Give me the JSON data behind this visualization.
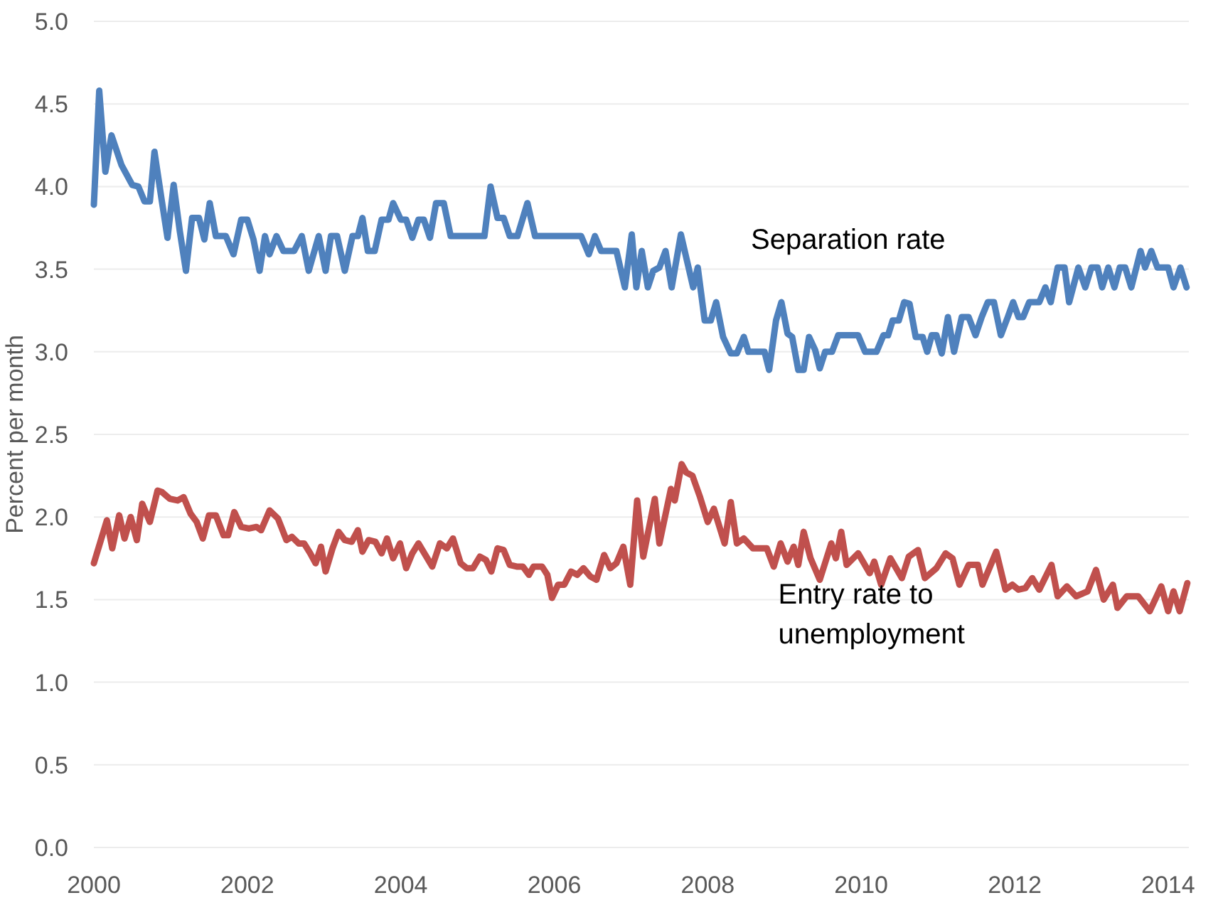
{
  "chart_data": {
    "type": "line",
    "ylabel": "Percent per month",
    "xlim": [
      2000,
      2014.27
    ],
    "xticks": [
      2000,
      2002,
      2004,
      2006,
      2008,
      2010,
      2012,
      2014
    ],
    "ylim": [
      0,
      5
    ],
    "yticks": [
      {
        "value": 0,
        "label": "0.0"
      },
      {
        "value": 0.5,
        "label": "0.5"
      },
      {
        "value": 1,
        "label": "1.0"
      },
      {
        "value": 1.5,
        "label": "1.5"
      },
      {
        "value": 2,
        "label": "2.0"
      },
      {
        "value": 2.5,
        "label": "2.5"
      },
      {
        "value": 3,
        "label": "3.0"
      },
      {
        "value": 3.5,
        "label": "3.5"
      },
      {
        "value": 4,
        "label": "4.0"
      },
      {
        "value": 4.5,
        "label": "4.5"
      },
      {
        "value": 5,
        "label": "5.0"
      }
    ],
    "grid": "y",
    "marker": "none",
    "line_style": "solid",
    "series": [
      {
        "name": "Separation rate",
        "color": "#4f81bd",
        "x": [
          2000,
          2000.07,
          2000.15,
          2000.23,
          2000.36,
          2000.5,
          2000.58,
          2000.66,
          2000.73,
          2000.79,
          2000.88,
          2000.96,
          2001.04,
          2001.12,
          2001.2,
          2001.28,
          2001.37,
          2001.44,
          2001.51,
          2001.59,
          2001.72,
          2001.82,
          2001.92,
          2002,
          2002.08,
          2002.16,
          2002.23,
          2002.29,
          2002.38,
          2002.47,
          2002.61,
          2002.71,
          2002.8,
          2002.93,
          2003.02,
          2003.09,
          2003.17,
          2003.27,
          2003.37,
          2003.44,
          2003.5,
          2003.57,
          2003.66,
          2003.75,
          2003.84,
          2003.9,
          2004,
          2004.07,
          2004.15,
          2004.23,
          2004.3,
          2004.38,
          2004.46,
          2004.56,
          2004.65,
          2005.09,
          2005.17,
          2005.26,
          2005.34,
          2005.42,
          2005.52,
          2005.65,
          2005.75,
          2006.35,
          2006.45,
          2006.53,
          2006.61,
          2006.81,
          2006.92,
          2007.01,
          2007.07,
          2007.14,
          2007.22,
          2007.29,
          2007.37,
          2007.45,
          2007.53,
          2007.65,
          2007.75,
          2007.81,
          2007.87,
          2007.96,
          2008.04,
          2008.11,
          2008.2,
          2008.3,
          2008.38,
          2008.47,
          2008.53,
          2008.74,
          2008.8,
          2008.89,
          2008.96,
          2009.04,
          2009.1,
          2009.18,
          2009.25,
          2009.32,
          2009.4,
          2009.46,
          2009.53,
          2009.62,
          2009.7,
          2009.96,
          2010.05,
          2010.2,
          2010.29,
          2010.35,
          2010.41,
          2010.49,
          2010.56,
          2010.63,
          2010.71,
          2010.8,
          2010.86,
          2010.92,
          2010.98,
          2011.05,
          2011.13,
          2011.21,
          2011.31,
          2011.4,
          2011.49,
          2011.57,
          2011.65,
          2011.73,
          2011.82,
          2011.91,
          2011.98,
          2012.05,
          2012.11,
          2012.19,
          2012.32,
          2012.4,
          2012.47,
          2012.56,
          2012.65,
          2012.71,
          2012.83,
          2012.92,
          2013,
          2013.08,
          2013.14,
          2013.22,
          2013.3,
          2013.37,
          2013.44,
          2013.52,
          2013.64,
          2013.7,
          2013.78,
          2013.86,
          2014,
          2014.07,
          2014.16,
          2014.24
        ],
        "values": [
          3.89,
          4.58,
          4.09,
          4.31,
          4.13,
          4.01,
          4.0,
          3.91,
          3.91,
          4.21,
          3.93,
          3.69,
          4.01,
          3.73,
          3.49,
          3.81,
          3.81,
          3.68,
          3.9,
          3.7,
          3.7,
          3.59,
          3.8,
          3.8,
          3.68,
          3.49,
          3.7,
          3.59,
          3.7,
          3.61,
          3.61,
          3.7,
          3.49,
          3.7,
          3.49,
          3.7,
          3.7,
          3.49,
          3.7,
          3.7,
          3.81,
          3.61,
          3.61,
          3.8,
          3.8,
          3.9,
          3.8,
          3.8,
          3.69,
          3.8,
          3.8,
          3.69,
          3.9,
          3.9,
          3.7,
          3.7,
          4.0,
          3.81,
          3.81,
          3.7,
          3.7,
          3.9,
          3.7,
          3.7,
          3.59,
          3.7,
          3.61,
          3.61,
          3.39,
          3.71,
          3.39,
          3.61,
          3.39,
          3.49,
          3.51,
          3.61,
          3.39,
          3.71,
          3.51,
          3.39,
          3.51,
          3.19,
          3.19,
          3.3,
          3.09,
          2.99,
          2.99,
          3.09,
          3.0,
          3.0,
          2.89,
          3.19,
          3.3,
          3.11,
          3.09,
          2.89,
          2.89,
          3.09,
          3.01,
          2.9,
          3.0,
          3.0,
          3.1,
          3.1,
          3.0,
          3.0,
          3.1,
          3.1,
          3.19,
          3.19,
          3.3,
          3.29,
          3.09,
          3.09,
          3.0,
          3.1,
          3.1,
          2.99,
          3.21,
          3.0,
          3.21,
          3.21,
          3.1,
          3.21,
          3.3,
          3.3,
          3.1,
          3.21,
          3.3,
          3.21,
          3.21,
          3.3,
          3.3,
          3.39,
          3.3,
          3.51,
          3.51,
          3.3,
          3.51,
          3.39,
          3.51,
          3.51,
          3.39,
          3.51,
          3.39,
          3.51,
          3.51,
          3.39,
          3.61,
          3.51,
          3.61,
          3.51,
          3.51,
          3.39,
          3.51,
          3.39
        ]
      },
      {
        "name": "Entry rate to unemployment",
        "color": "#c0504d",
        "x": [
          2000,
          2000.17,
          2000.24,
          2000.33,
          2000.4,
          2000.48,
          2000.56,
          2000.63,
          2000.73,
          2000.83,
          2000.89,
          2000.99,
          2001.09,
          2001.17,
          2001.26,
          2001.34,
          2001.42,
          2001.5,
          2001.59,
          2001.69,
          2001.75,
          2001.83,
          2001.92,
          2002.02,
          2002.12,
          2002.18,
          2002.29,
          2002.4,
          2002.51,
          2002.58,
          2002.67,
          2002.74,
          2002.82,
          2002.89,
          2002.96,
          2003.02,
          2003.11,
          2003.19,
          2003.27,
          2003.36,
          2003.44,
          2003.5,
          2003.58,
          2003.67,
          2003.75,
          2003.82,
          2003.9,
          2003.99,
          2004.07,
          2004.15,
          2004.23,
          2004.32,
          2004.41,
          2004.51,
          2004.6,
          2004.68,
          2004.78,
          2004.86,
          2004.94,
          2005.03,
          2005.11,
          2005.18,
          2005.26,
          2005.34,
          2005.42,
          2005.51,
          2005.59,
          2005.67,
          2005.73,
          2005.84,
          2005.91,
          2005.97,
          2006.05,
          2006.13,
          2006.22,
          2006.3,
          2006.38,
          2006.47,
          2006.55,
          2006.65,
          2006.73,
          2006.81,
          2006.9,
          2006.99,
          2007.08,
          2007.16,
          2007.31,
          2007.37,
          2007.52,
          2007.57,
          2007.66,
          2007.72,
          2007.8,
          2007.9,
          2008,
          2008.08,
          2008.22,
          2008.3,
          2008.38,
          2008.47,
          2008.59,
          2008.77,
          2008.86,
          2008.95,
          2009.04,
          2009.12,
          2009.18,
          2009.25,
          2009.34,
          2009.46,
          2009.61,
          2009.67,
          2009.74,
          2009.81,
          2009.96,
          2010.11,
          2010.17,
          2010.26,
          2010.38,
          2010.53,
          2010.62,
          2010.74,
          2010.83,
          2010.98,
          2011.1,
          2011.19,
          2011.28,
          2011.4,
          2011.52,
          2011.58,
          2011.76,
          2011.88,
          2011.97,
          2012.05,
          2012.14,
          2012.23,
          2012.32,
          2012.48,
          2012.56,
          2012.68,
          2012.8,
          2012.95,
          2013.06,
          2013.16,
          2013.28,
          2013.34,
          2013.46,
          2013.61,
          2013.76,
          2013.91,
          2014,
          2014.07,
          2014.15,
          2014.25
        ],
        "values": [
          1.72,
          1.98,
          1.81,
          2.01,
          1.87,
          2.0,
          1.86,
          2.08,
          1.97,
          2.16,
          2.15,
          2.11,
          2.1,
          2.12,
          2.02,
          1.97,
          1.87,
          2.01,
          2.01,
          1.89,
          1.89,
          2.03,
          1.94,
          1.93,
          1.94,
          1.92,
          2.04,
          1.99,
          1.86,
          1.88,
          1.84,
          1.84,
          1.78,
          1.72,
          1.82,
          1.67,
          1.81,
          1.91,
          1.86,
          1.85,
          1.92,
          1.79,
          1.86,
          1.85,
          1.78,
          1.87,
          1.75,
          1.84,
          1.69,
          1.78,
          1.84,
          1.77,
          1.7,
          1.84,
          1.81,
          1.87,
          1.72,
          1.69,
          1.69,
          1.76,
          1.74,
          1.67,
          1.81,
          1.8,
          1.71,
          1.7,
          1.7,
          1.65,
          1.7,
          1.7,
          1.65,
          1.51,
          1.59,
          1.59,
          1.67,
          1.65,
          1.69,
          1.64,
          1.62,
          1.77,
          1.69,
          1.72,
          1.82,
          1.59,
          2.1,
          1.76,
          2.11,
          1.84,
          2.17,
          2.1,
          2.32,
          2.27,
          2.25,
          2.12,
          1.97,
          2.05,
          1.84,
          2.09,
          1.84,
          1.87,
          1.81,
          1.81,
          1.7,
          1.84,
          1.73,
          1.82,
          1.71,
          1.91,
          1.75,
          1.62,
          1.84,
          1.75,
          1.91,
          1.71,
          1.78,
          1.66,
          1.73,
          1.59,
          1.75,
          1.63,
          1.76,
          1.8,
          1.63,
          1.69,
          1.78,
          1.75,
          1.59,
          1.71,
          1.71,
          1.59,
          1.79,
          1.56,
          1.59,
          1.56,
          1.57,
          1.63,
          1.56,
          1.71,
          1.52,
          1.58,
          1.52,
          1.55,
          1.68,
          1.5,
          1.59,
          1.45,
          1.52,
          1.52,
          1.43,
          1.58,
          1.43,
          1.55,
          1.43,
          1.6
        ]
      }
    ]
  }
}
